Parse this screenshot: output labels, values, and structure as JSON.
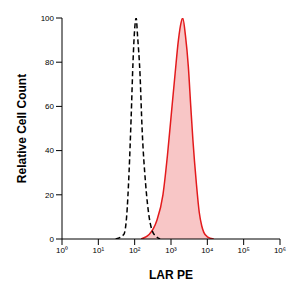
{
  "chart_data": {
    "type": "line",
    "x_label": "LAR PE",
    "y_label": "Relative Cell Count",
    "log": "x",
    "xlim": [
      1,
      1000000
    ],
    "xticks": [
      {
        "value": 1,
        "label": "10⁰"
      },
      {
        "value": 10,
        "label": "10¹"
      },
      {
        "value": 100,
        "label": "10²"
      },
      {
        "value": 1000,
        "label": "10³"
      },
      {
        "value": 10000,
        "label": "10⁴"
      },
      {
        "value": 100000,
        "label": "10⁵"
      },
      {
        "value": 1000000,
        "label": "10⁶"
      }
    ],
    "ylim": [
      0,
      100
    ],
    "yticks": [
      0,
      20,
      40,
      60,
      80,
      100
    ],
    "series": [
      {
        "type": "line",
        "color": "#000000",
        "line_style": "dashed",
        "x": [
          30,
          50,
          60,
          70,
          80,
          90,
          100,
          110,
          120,
          140,
          160,
          200,
          250,
          300,
          400,
          500
        ],
        "values": [
          0,
          2,
          10,
          30,
          55,
          80,
          95,
          100,
          92,
          75,
          50,
          25,
          10,
          4,
          1,
          0
        ]
      },
      {
        "type": "area",
        "color": "#e31a1c",
        "line_style": "solid",
        "x": [
          150,
          250,
          400,
          600,
          800,
          1000,
          1300,
          1600,
          1900,
          2100,
          2500,
          3000,
          3500,
          4000,
          5000,
          6000,
          7000,
          8000,
          10000,
          15000
        ],
        "values": [
          0,
          2,
          8,
          20,
          38,
          55,
          75,
          90,
          98,
          100,
          92,
          78,
          60,
          45,
          25,
          12,
          6,
          3,
          1,
          0
        ]
      }
    ]
  }
}
